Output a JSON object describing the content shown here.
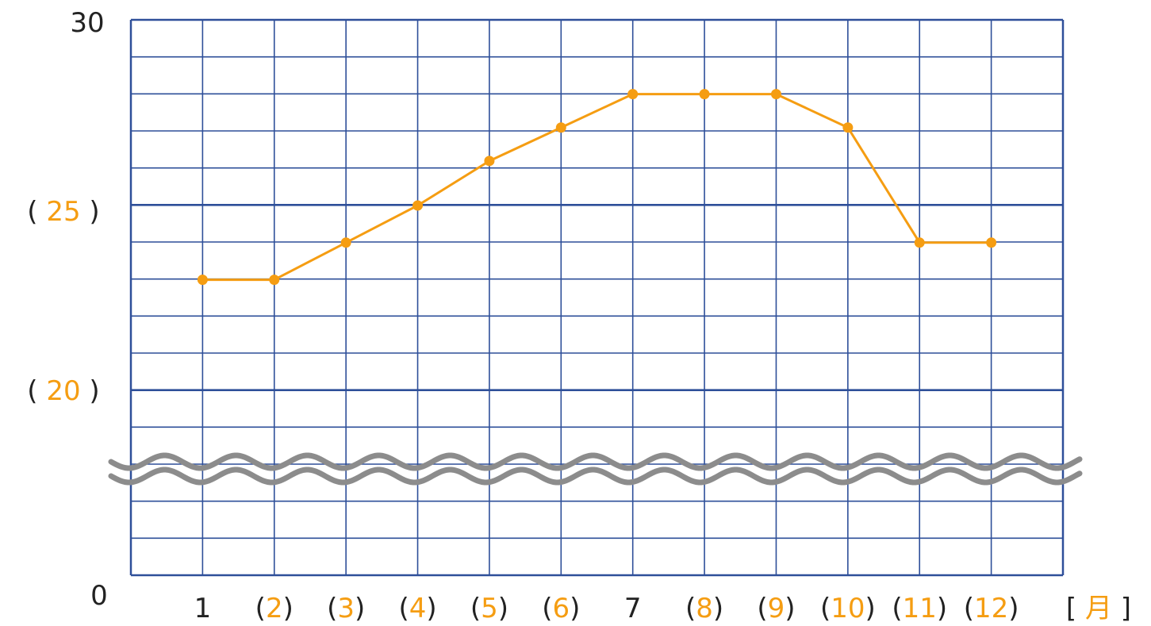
{
  "chart_data": {
    "type": "line",
    "colors": {
      "grid": "#2e4f99",
      "line": "#f59d12",
      "black_text": "#222222",
      "orange_text": "#f59d12",
      "wave": "#8c8c8c"
    },
    "x": [
      1,
      2,
      3,
      4,
      5,
      6,
      7,
      8,
      9,
      10,
      11,
      12
    ],
    "series": [
      {
        "values": [
          23,
          23,
          24,
          25,
          26.2,
          27.1,
          28,
          28,
          28,
          27.1,
          24,
          24
        ]
      }
    ],
    "axis_break": {
      "broken_y_axis": true,
      "icon": "wavy-break-icon"
    },
    "grid": true,
    "y_labels": [
      {
        "value": 30,
        "parts": [
          {
            "t": "30",
            "c": "black"
          }
        ]
      },
      {
        "value": 25,
        "parts": [
          {
            "t": "( ",
            "c": "black"
          },
          {
            "t": "25",
            "c": "orange"
          },
          {
            "t": " )",
            "c": "black"
          }
        ]
      },
      {
        "value": 20,
        "parts": [
          {
            "t": "( ",
            "c": "black"
          },
          {
            "t": "20",
            "c": "orange"
          },
          {
            "t": " )",
            "c": "black"
          }
        ]
      },
      {
        "value": 0,
        "parts": [
          {
            "t": "0",
            "c": "black"
          }
        ]
      }
    ],
    "x_labels": [
      {
        "month": 1,
        "parts": [
          {
            "t": "1",
            "c": "black"
          }
        ]
      },
      {
        "month": 2,
        "parts": [
          {
            "t": "(",
            "c": "black"
          },
          {
            "t": "2",
            "c": "orange"
          },
          {
            "t": ")",
            "c": "black"
          }
        ]
      },
      {
        "month": 3,
        "parts": [
          {
            "t": "(",
            "c": "black"
          },
          {
            "t": "3",
            "c": "orange"
          },
          {
            "t": ")",
            "c": "black"
          }
        ]
      },
      {
        "month": 4,
        "parts": [
          {
            "t": "(",
            "c": "black"
          },
          {
            "t": "4",
            "c": "orange"
          },
          {
            "t": ")",
            "c": "black"
          }
        ]
      },
      {
        "month": 5,
        "parts": [
          {
            "t": "(",
            "c": "black"
          },
          {
            "t": "5",
            "c": "orange"
          },
          {
            "t": ")",
            "c": "black"
          }
        ]
      },
      {
        "month": 6,
        "parts": [
          {
            "t": "(",
            "c": "black"
          },
          {
            "t": "6",
            "c": "orange"
          },
          {
            "t": ")",
            "c": "black"
          }
        ]
      },
      {
        "month": 7,
        "parts": [
          {
            "t": "7",
            "c": "black"
          }
        ]
      },
      {
        "month": 8,
        "parts": [
          {
            "t": "(",
            "c": "black"
          },
          {
            "t": "8",
            "c": "orange"
          },
          {
            "t": ")",
            "c": "black"
          }
        ]
      },
      {
        "month": 9,
        "parts": [
          {
            "t": "(",
            "c": "black"
          },
          {
            "t": "9",
            "c": "orange"
          },
          {
            "t": ")",
            "c": "black"
          }
        ]
      },
      {
        "month": 10,
        "parts": [
          {
            "t": "(",
            "c": "black"
          },
          {
            "t": "10",
            "c": "orange"
          },
          {
            "t": ")",
            "c": "black"
          }
        ]
      },
      {
        "month": 11,
        "parts": [
          {
            "t": "(",
            "c": "black"
          },
          {
            "t": "11",
            "c": "orange"
          },
          {
            "t": ")",
            "c": "black"
          }
        ]
      },
      {
        "month": 12,
        "parts": [
          {
            "t": "(",
            "c": "black"
          },
          {
            "t": "12",
            "c": "orange"
          },
          {
            "t": ")",
            "c": "black"
          }
        ]
      }
    ],
    "unit_label": {
      "parts": [
        {
          "t": "[ ",
          "c": "black"
        },
        {
          "t": "月",
          "c": "orange"
        },
        {
          "t": " ]",
          "c": "black"
        }
      ]
    }
  }
}
